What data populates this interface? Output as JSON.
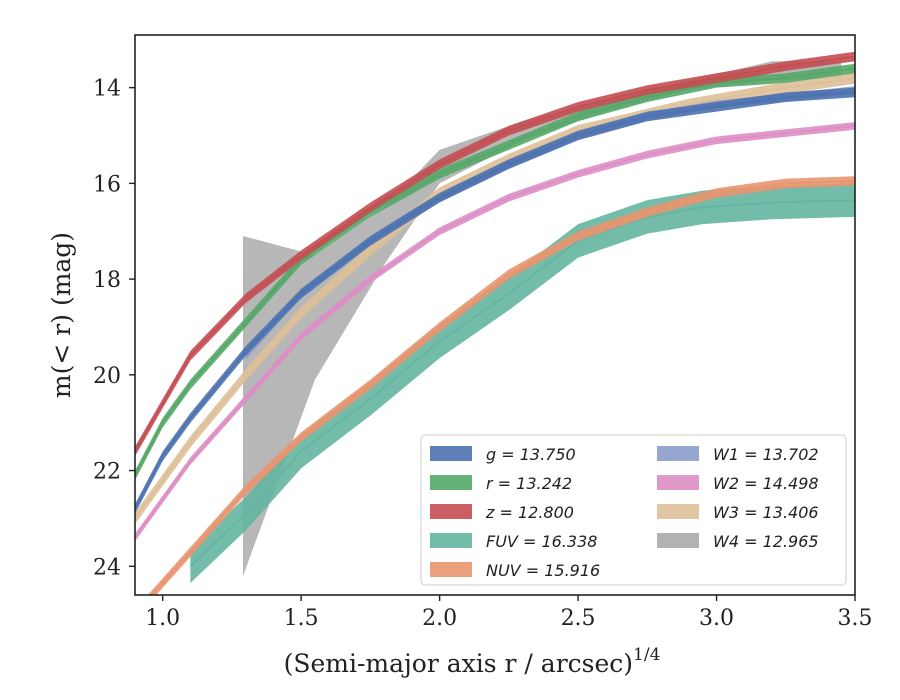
{
  "chart_data": {
    "type": "line",
    "title": "",
    "xlabel": "(Semi-major axis r / arcsec)",
    "xlabel_exponent": "1/4",
    "ylabel": "m(< r) (mag)",
    "xlim": [
      0.9,
      3.5
    ],
    "ylim": [
      24.6,
      12.9
    ],
    "y_inverted": true,
    "grid": false,
    "legend_position": "lower-right",
    "x_ticks": [
      "1.0",
      "1.5",
      "2.0",
      "2.5",
      "3.0",
      "3.5"
    ],
    "y_ticks": [
      "14",
      "16",
      "18",
      "20",
      "22",
      "24"
    ],
    "series": [
      {
        "name": "g = 13.750",
        "color": "#4c72b0",
        "band_width": 0.1,
        "x": [
          0.9,
          1.0,
          1.1,
          1.3,
          1.5,
          1.75,
          2.0,
          2.25,
          2.5,
          2.75,
          3.0,
          3.25,
          3.5
        ],
        "y": [
          22.8,
          21.7,
          20.9,
          19.5,
          18.3,
          17.2,
          16.3,
          15.6,
          15.0,
          14.6,
          14.4,
          14.2,
          14.1
        ]
      },
      {
        "name": "r = 13.242",
        "color": "#55a868",
        "band_width": 0.1,
        "x": [
          0.9,
          1.0,
          1.1,
          1.3,
          1.5,
          1.75,
          2.0,
          2.25,
          2.5,
          2.75,
          3.0,
          3.25,
          3.5
        ],
        "y": [
          22.1,
          21.0,
          20.2,
          18.9,
          17.6,
          16.6,
          15.8,
          15.2,
          14.6,
          14.2,
          13.9,
          13.8,
          13.6
        ]
      },
      {
        "name": "z = 12.800",
        "color": "#c44e52",
        "band_width": 0.1,
        "x": [
          0.9,
          1.0,
          1.1,
          1.3,
          1.5,
          1.75,
          2.0,
          2.25,
          2.5,
          2.75,
          3.0,
          3.25,
          3.5
        ],
        "y": [
          21.6,
          20.6,
          19.6,
          18.4,
          17.5,
          16.5,
          15.6,
          14.9,
          14.4,
          14.05,
          13.8,
          13.55,
          13.35
        ]
      },
      {
        "name": "FUV = 16.338",
        "color": "#64b5a0",
        "band_width": 0.35,
        "x": [
          1.1,
          1.3,
          1.5,
          1.75,
          2.0,
          2.25,
          2.5,
          2.75,
          2.95,
          3.2,
          3.5
        ],
        "y": [
          24.0,
          22.9,
          21.6,
          20.5,
          19.3,
          18.3,
          17.2,
          16.7,
          16.5,
          16.4,
          16.35
        ]
      },
      {
        "name": "NUV = 15.916",
        "color": "#e8956f",
        "band_width": 0.1,
        "x": [
          0.9,
          1.1,
          1.3,
          1.5,
          1.75,
          2.0,
          2.25,
          2.5,
          2.75,
          3.0,
          3.25,
          3.5
        ],
        "y": [
          25.0,
          23.7,
          22.4,
          21.3,
          20.2,
          19.0,
          17.9,
          17.1,
          16.6,
          16.2,
          16.0,
          15.95
        ]
      },
      {
        "name": "W1 = 13.702",
        "color": "#8c9ccb",
        "band_width": 0.08,
        "x": [
          1.3,
          1.5,
          1.75,
          2.0,
          2.25,
          2.5,
          2.75,
          3.0,
          3.25,
          3.5
        ],
        "y": [
          19.6,
          18.3,
          17.2,
          16.3,
          15.6,
          15.0,
          14.6,
          14.35,
          14.2,
          14.05
        ]
      },
      {
        "name": "W2 = 14.498",
        "color": "#dd8ec4",
        "band_width": 0.08,
        "x": [
          0.9,
          1.1,
          1.3,
          1.5,
          1.75,
          2.0,
          2.25,
          2.5,
          2.75,
          3.0,
          3.25,
          3.5
        ],
        "y": [
          23.4,
          21.8,
          20.5,
          19.2,
          18.0,
          17.0,
          16.3,
          15.8,
          15.4,
          15.1,
          14.95,
          14.8
        ]
      },
      {
        "name": "W3 = 13.406",
        "color": "#ddc098",
        "band_width": 0.12,
        "x": [
          0.9,
          1.1,
          1.3,
          1.5,
          1.75,
          2.0,
          2.25,
          2.5,
          2.65,
          2.9,
          3.2,
          3.5
        ],
        "y": [
          23.0,
          21.4,
          20.0,
          18.7,
          17.4,
          16.2,
          15.5,
          14.9,
          14.7,
          14.35,
          14.05,
          13.8
        ]
      },
      {
        "name": "W4 = 12.965",
        "color": "#aaaaaa",
        "x": [
          1.29,
          1.55,
          1.8,
          2.0,
          2.3,
          2.6,
          2.9,
          3.2,
          3.45
        ],
        "y_low": [
          24.2,
          20.1,
          17.7,
          16.0,
          15.1,
          14.5,
          14.05,
          13.85,
          13.8
        ],
        "y_high": [
          17.1,
          17.5,
          16.5,
          15.3,
          14.7,
          14.25,
          13.85,
          13.45,
          13.45
        ]
      }
    ]
  }
}
